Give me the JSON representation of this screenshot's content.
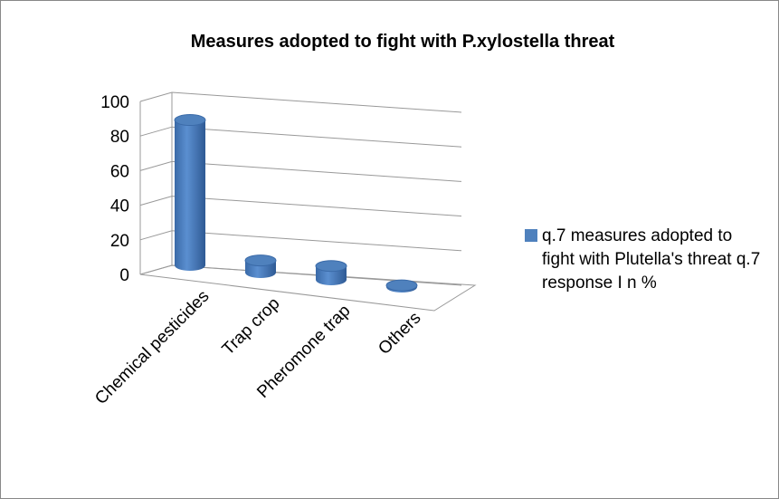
{
  "chart_data": {
    "type": "bar3d",
    "title": "Measures adopted to fight with P.xylostella threat",
    "categories": [
      "Chemical pesticides",
      "Trap crop",
      "Pheromone trap",
      "Others"
    ],
    "series": [
      {
        "name": "q.7 measures adopted to fight with Plutella's threat q.7 response I n %",
        "color": "#4f81bd",
        "values": [
          84,
          7,
          8,
          1
        ]
      }
    ],
    "ylim": [
      0,
      100
    ],
    "yticks": [
      0,
      20,
      40,
      60,
      80,
      100
    ],
    "grid": true,
    "legend": "right"
  }
}
